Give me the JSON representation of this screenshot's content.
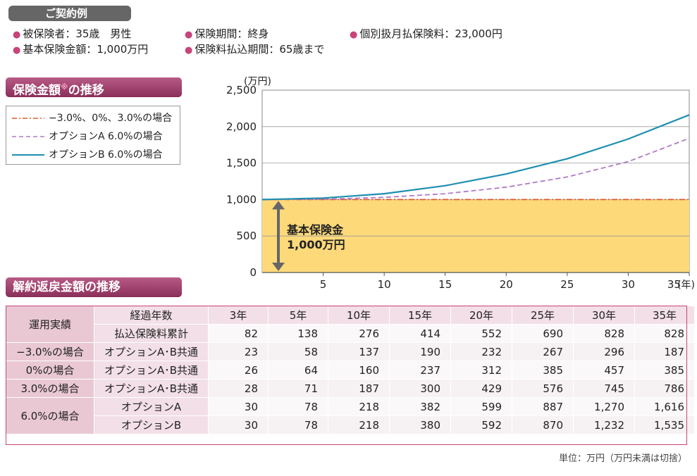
{
  "example": {
    "title": "ご契約例",
    "items": [
      "被保険者：35歳　男性",
      "基本保険金額：1,000万円",
      "保険期間：終身",
      "保険料払込期間：65歳まで",
      "個別扱月払保険料：23,000円"
    ]
  },
  "chart_section": {
    "title_main": "保険金額",
    "title_mark": "※",
    "title_rest": "の推移"
  },
  "chart_data": {
    "type": "line",
    "y_unit": "(万円)",
    "x_unit": "(年)",
    "ylim": [
      0,
      2500
    ],
    "xlim": [
      0,
      35
    ],
    "yticks": [
      0,
      500,
      1000,
      1500,
      2000,
      2500
    ],
    "ytick_labels": [
      "0",
      "500",
      "1,000",
      "1,500",
      "2,000",
      "2,500"
    ],
    "xticks": [
      5,
      10,
      15,
      20,
      25,
      30,
      35
    ],
    "grid": true,
    "legend": [
      "−3.0%、0%、3.0%の場合",
      "オプションA 6.0%の場合",
      "オプションB 6.0%の場合"
    ],
    "series": [
      {
        "name": "−3.0%、0%、3.0%の場合",
        "style": "dash-dot",
        "color": "#e05a2a",
        "x": [
          0,
          5,
          10,
          15,
          20,
          25,
          30,
          35
        ],
        "values": [
          1000,
          1000,
          1000,
          1000,
          1000,
          1000,
          1000,
          1000
        ]
      },
      {
        "name": "オプションA 6.0%の場合",
        "style": "dashed",
        "color": "#b07ac8",
        "x": [
          0,
          5,
          10,
          15,
          20,
          25,
          30,
          35
        ],
        "values": [
          1000,
          1005,
          1030,
          1080,
          1170,
          1310,
          1520,
          1840
        ]
      },
      {
        "name": "オプションB 6.0%の場合",
        "style": "solid",
        "color": "#1e8fb0",
        "x": [
          0,
          5,
          10,
          15,
          20,
          25,
          30,
          35
        ],
        "values": [
          1000,
          1020,
          1080,
          1190,
          1350,
          1560,
          1830,
          2160
        ]
      }
    ],
    "base_area": {
      "value": 1000,
      "label_line1": "基本保険金",
      "label_line2": "1,000万円",
      "color": "#fdd97a"
    }
  },
  "table_section": {
    "title": "解約返戻金額の推移"
  },
  "table": {
    "header_label": "運用実績",
    "elapsed_label": "経過年数",
    "paid_label": "払込保険料累計",
    "years": [
      "3年",
      "5年",
      "10年",
      "15年",
      "20年",
      "25年",
      "30年",
      "35年"
    ],
    "paid": [
      "82",
      "138",
      "276",
      "414",
      "552",
      "690",
      "828",
      "828"
    ],
    "rows": [
      {
        "case": "−3.0%の場合",
        "option": "オプションA･B共通",
        "values": [
          "23",
          "58",
          "137",
          "190",
          "232",
          "267",
          "296",
          "187"
        ]
      },
      {
        "case": "0%の場合",
        "option": "オプションA･B共通",
        "values": [
          "26",
          "64",
          "160",
          "237",
          "312",
          "385",
          "457",
          "385"
        ]
      },
      {
        "case": "3.0%の場合",
        "option": "オプションA･B共通",
        "values": [
          "28",
          "71",
          "187",
          "300",
          "429",
          "576",
          "745",
          "786"
        ]
      },
      {
        "case": "6.0%の場合",
        "option": "オプションA",
        "values": [
          "30",
          "78",
          "218",
          "382",
          "599",
          "887",
          "1,270",
          "1,616"
        ]
      },
      {
        "case": "6.0%の場合",
        "option": "オプションB",
        "values": [
          "30",
          "78",
          "218",
          "380",
          "592",
          "870",
          "1,232",
          "1,535"
        ]
      }
    ],
    "unit_note": "単位：万円（万円未満は切捨）"
  }
}
